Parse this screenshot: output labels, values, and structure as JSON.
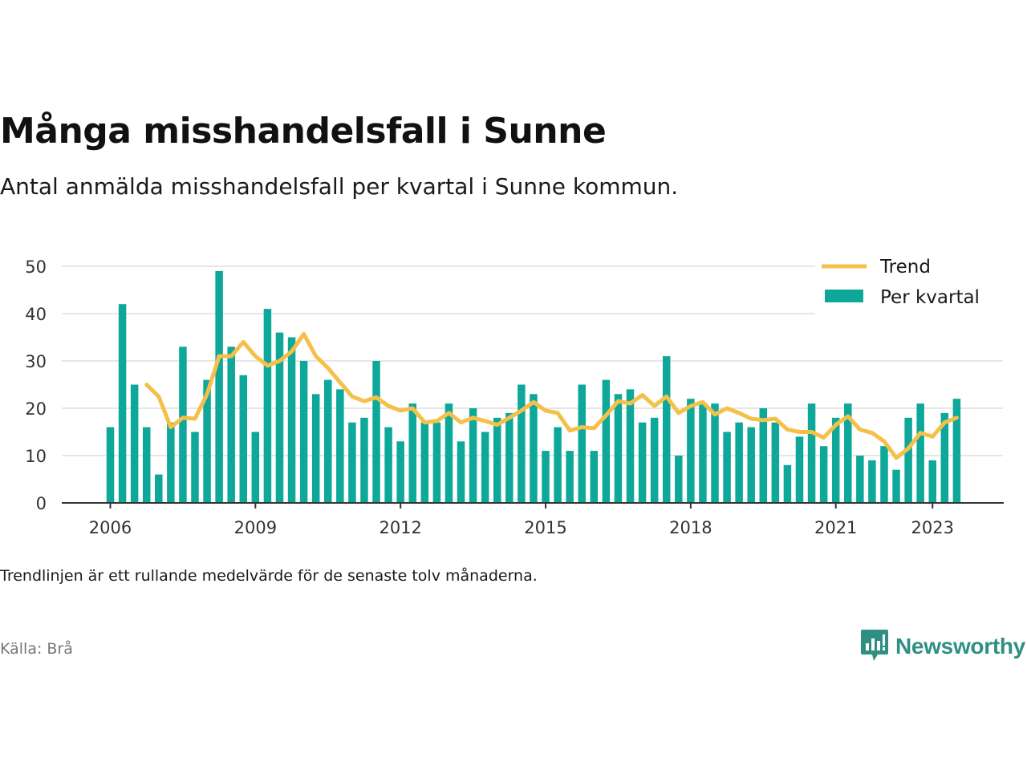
{
  "title": "Många misshandelsfall i Sunne",
  "subtitle": "Antal anmälda misshandelsfall per kvartal i Sunne kommun.",
  "note": "Trendlinjen är ett rullande medelvärde för de senaste tolv månaderna.",
  "source": "Källa: Brå",
  "brand": {
    "name": "Newsworthy",
    "icon": "newsworthy-logo-icon",
    "color": "#2f8f83"
  },
  "colors": {
    "bar": "#0ea89b",
    "trend": "#f5c04a",
    "grid": "#dddddd",
    "axis": "#333333"
  },
  "chart_data": {
    "type": "bar",
    "x_start": "2006 Q1",
    "xticks": [
      "2006",
      "2009",
      "2012",
      "2015",
      "2018",
      "2021",
      "2023"
    ],
    "yticks": [
      0,
      10,
      20,
      30,
      40,
      50
    ],
    "ylim": [
      0,
      50
    ],
    "grid": true,
    "legend_position": "top-right",
    "series": [
      {
        "name": "Per kvartal",
        "type": "bar",
        "values": [
          16,
          42,
          25,
          16,
          6,
          17,
          33,
          15,
          26,
          49,
          33,
          27,
          15,
          41,
          36,
          35,
          30,
          23,
          26,
          24,
          17,
          18,
          30,
          16,
          13,
          21,
          17,
          17,
          21,
          13,
          20,
          15,
          18,
          19,
          25,
          23,
          11,
          16,
          11,
          25,
          11,
          26,
          23,
          24,
          17,
          18,
          31,
          10,
          22,
          21,
          21,
          15,
          17,
          16,
          20,
          17,
          8,
          14,
          21,
          12,
          18,
          21,
          10,
          9,
          12,
          7,
          18,
          21,
          9,
          19,
          22
        ]
      },
      {
        "name": "Trend",
        "type": "line",
        "start_index": 3,
        "values": [
          25,
          22.5,
          16,
          18,
          17.8,
          23,
          31,
          31,
          34,
          31,
          29,
          30,
          32,
          35.7,
          31,
          28.5,
          25.5,
          22.5,
          21.5,
          22.3,
          20.5,
          19.5,
          20,
          17,
          17.3,
          19,
          17,
          18,
          17.3,
          16.5,
          18,
          19.5,
          21.3,
          19.5,
          19,
          15.3,
          16,
          15.8,
          18.5,
          21.5,
          21,
          22.8,
          20.5,
          22.5,
          19,
          20.5,
          21.3,
          18.7,
          20,
          19,
          17.8,
          17.5,
          17.8,
          15.5,
          15,
          15,
          13.8,
          16.5,
          18.3,
          15.5,
          14.8,
          13,
          9.5,
          11.5,
          14.8,
          14,
          17,
          18
        ]
      }
    ]
  }
}
